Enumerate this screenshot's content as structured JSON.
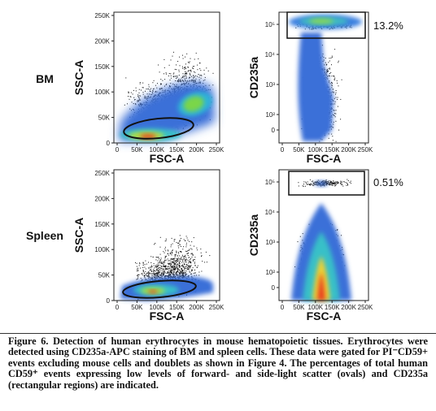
{
  "rows": [
    "BM",
    "Spleen"
  ],
  "panels": [
    {
      "x_label": "FSC-A",
      "y_label": "SSC-A",
      "x_ticks": [
        "0",
        "50K",
        "100K",
        "150K",
        "200K",
        "250K"
      ],
      "y_ticks": [
        "0",
        "50K",
        "100K",
        "150K",
        "200K",
        "250K"
      ]
    },
    {
      "x_label": "FSC-A",
      "y_label": "CD235a",
      "x_ticks": [
        "0",
        "50K",
        "100K",
        "150K",
        "200K",
        "250K"
      ],
      "y_ticks": [
        "0",
        "10²",
        "10³",
        "10⁴",
        "10⁵"
      ],
      "gate": "13.2%"
    },
    {
      "x_label": "FSC-A",
      "y_label": "SSC-A",
      "x_ticks": [
        "0",
        "50K",
        "100K",
        "150K",
        "200K",
        "250K"
      ],
      "y_ticks": [
        "0",
        "50K",
        "100K",
        "150K",
        "200K",
        "250K"
      ]
    },
    {
      "x_label": "FSC-A",
      "y_label": "CD235a",
      "x_ticks": [
        "0",
        "50K",
        "100K",
        "150K",
        "200K",
        "250K"
      ],
      "y_ticks": [
        "0",
        "10²",
        "10³",
        "10⁴",
        "10⁵"
      ],
      "gate": "0.51%"
    }
  ],
  "caption": {
    "title": "Figure 6. Detection of human erythrocytes in mouse hematopoietic tissues.",
    "body": "Erythrocytes were detected using CD235a-APC staining of BM and spleen cells. These data were gated for PI⁻CD59+ events excluding mouse cells and doublets as shown in Figure 4. The percentages of total human CD59⁺ events expressing low levels of forward- and side-light scatter (ovals) and CD235a (rectangular regions) are indicated."
  }
}
